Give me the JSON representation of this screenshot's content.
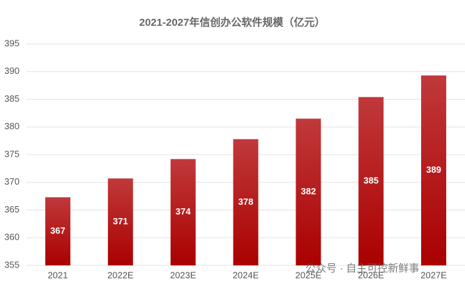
{
  "chart_data": {
    "type": "bar",
    "title": "2021-2027年信创办公软件规模（亿元）",
    "categories": [
      "2021",
      "2022E",
      "2023E",
      "2024E",
      "2025E",
      "2026E",
      "2027E"
    ],
    "values": [
      367.3,
      370.7,
      374.2,
      377.8,
      381.5,
      385.4,
      389.3
    ],
    "value_labels": [
      "367",
      "371",
      "374",
      "378",
      "382",
      "385",
      "389"
    ],
    "color": "#b00a0c",
    "ylim": [
      355,
      395
    ],
    "yticks": [
      355,
      360,
      365,
      370,
      375,
      380,
      385,
      390,
      395
    ],
    "grid": true,
    "annotation": "公众号 · 自主可控新鲜事"
  }
}
